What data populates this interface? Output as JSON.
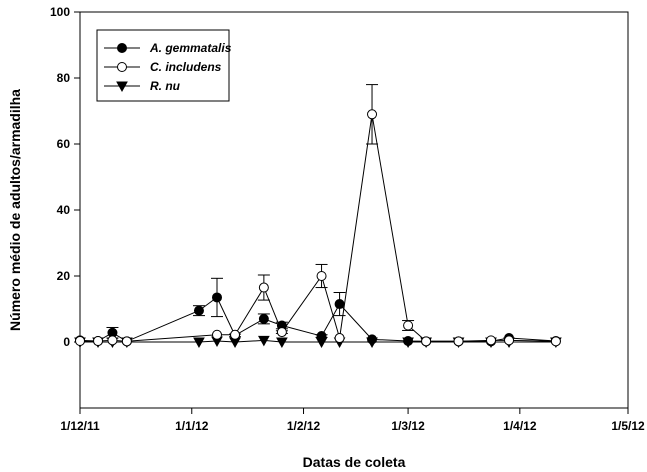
{
  "chart_data": {
    "type": "line",
    "xlabel": "Datas de coleta",
    "ylabel": "Número médio de adultos/armadilha",
    "xlim": [
      "2011-12-01",
      "2012-05-01"
    ],
    "ylim": [
      -20,
      100
    ],
    "x_ticks": [
      {
        "date": "2011-12-01",
        "label": "1/12/11"
      },
      {
        "date": "2012-01-01",
        "label": "1/1/12"
      },
      {
        "date": "2012-02-01",
        "label": "1/2/12"
      },
      {
        "date": "2012-03-01",
        "label": "1/3/12"
      },
      {
        "date": "2012-04-01",
        "label": "1/4/12"
      },
      {
        "date": "2012-05-01",
        "label": "1/5/12"
      }
    ],
    "y_ticks": [
      0,
      20,
      40,
      60,
      80,
      100
    ],
    "grid": false,
    "legend": {
      "position": "top-left",
      "boxed": true
    },
    "series": [
      {
        "name": "A. gemmatalis",
        "marker": "filled-circle",
        "points": [
          {
            "x": "2011-12-01",
            "y": 0.5,
            "err": 0
          },
          {
            "x": "2011-12-06",
            "y": 0.3,
            "err": 0
          },
          {
            "x": "2011-12-10",
            "y": 2.8,
            "err": 1.6
          },
          {
            "x": "2011-12-14",
            "y": 0.2,
            "err": 0
          },
          {
            "x": "2012-01-03",
            "y": 9.5,
            "err": 1.5
          },
          {
            "x": "2012-01-08",
            "y": 13.5,
            "err": 5.8
          },
          {
            "x": "2012-01-13",
            "y": 2.0,
            "err": 0.4
          },
          {
            "x": "2012-01-21",
            "y": 7.0,
            "err": 1.5
          },
          {
            "x": "2012-01-26",
            "y": 5.0,
            "err": 1.0
          },
          {
            "x": "2012-02-06",
            "y": 1.8,
            "err": 0.4
          },
          {
            "x": "2012-02-11",
            "y": 11.5,
            "err": 3.5
          },
          {
            "x": "2012-02-20",
            "y": 0.8,
            "err": 0
          },
          {
            "x": "2012-03-01",
            "y": 0.3,
            "err": 0
          },
          {
            "x": "2012-03-06",
            "y": 0.2,
            "err": 0
          },
          {
            "x": "2012-03-15",
            "y": 0.2,
            "err": 0
          },
          {
            "x": "2012-03-24",
            "y": 0.2,
            "err": 0
          },
          {
            "x": "2012-03-29",
            "y": 1.2,
            "err": 0
          },
          {
            "x": "2012-04-11",
            "y": 0.3,
            "err": 0
          }
        ]
      },
      {
        "name": "C. includens",
        "marker": "open-circle",
        "points": [
          {
            "x": "2011-12-01",
            "y": 0.3,
            "err": 0
          },
          {
            "x": "2011-12-06",
            "y": 0.3,
            "err": 0
          },
          {
            "x": "2011-12-10",
            "y": 0.5,
            "err": 0
          },
          {
            "x": "2011-12-14",
            "y": 0.2,
            "err": 0
          },
          {
            "x": "2012-01-08",
            "y": 2.2,
            "err": 0
          },
          {
            "x": "2012-01-13",
            "y": 2.2,
            "err": 0
          },
          {
            "x": "2012-01-21",
            "y": 16.5,
            "err": 3.8
          },
          {
            "x": "2012-01-26",
            "y": 3.0,
            "err": 0.4
          },
          {
            "x": "2012-02-06",
            "y": 20.0,
            "err": 3.5
          },
          {
            "x": "2012-02-11",
            "y": 1.2,
            "err": 0
          },
          {
            "x": "2012-02-20",
            "y": 69.0,
            "err": 9.0
          },
          {
            "x": "2012-03-01",
            "y": 5.0,
            "err": 1.5
          },
          {
            "x": "2012-03-06",
            "y": 0.2,
            "err": 0
          },
          {
            "x": "2012-03-15",
            "y": 0.2,
            "err": 0
          },
          {
            "x": "2012-03-24",
            "y": 0.5,
            "err": 0
          },
          {
            "x": "2012-03-29",
            "y": 0.5,
            "err": 0
          },
          {
            "x": "2012-04-11",
            "y": 0.2,
            "err": 0
          }
        ]
      },
      {
        "name": "R. nu",
        "marker": "filled-triangle-down",
        "points": [
          {
            "x": "2011-12-01",
            "y": 0,
            "err": 0
          },
          {
            "x": "2011-12-06",
            "y": 0,
            "err": 0
          },
          {
            "x": "2011-12-10",
            "y": 0,
            "err": 0
          },
          {
            "x": "2011-12-14",
            "y": 0,
            "err": 0
          },
          {
            "x": "2012-01-03",
            "y": 0,
            "err": 0
          },
          {
            "x": "2012-01-08",
            "y": 0.3,
            "err": 0
          },
          {
            "x": "2012-01-13",
            "y": 0,
            "err": 0
          },
          {
            "x": "2012-01-21",
            "y": 0.5,
            "err": 0
          },
          {
            "x": "2012-01-26",
            "y": 0,
            "err": 0
          },
          {
            "x": "2012-02-06",
            "y": 0,
            "err": 0
          },
          {
            "x": "2012-02-11",
            "y": 0,
            "err": 0
          },
          {
            "x": "2012-02-20",
            "y": 0,
            "err": 0
          },
          {
            "x": "2012-03-01",
            "y": 0,
            "err": 0
          },
          {
            "x": "2012-03-06",
            "y": 0,
            "err": 0
          },
          {
            "x": "2012-03-15",
            "y": 0,
            "err": 0
          },
          {
            "x": "2012-03-24",
            "y": 0,
            "err": 0
          },
          {
            "x": "2012-03-29",
            "y": 0,
            "err": 0
          },
          {
            "x": "2012-04-11",
            "y": 0,
            "err": 0
          }
        ]
      }
    ]
  }
}
